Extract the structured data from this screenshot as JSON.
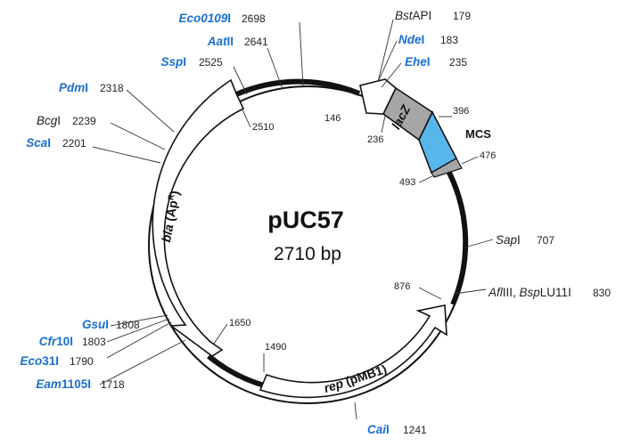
{
  "plasmid": {
    "name": "pUC57",
    "size": "2710 bp"
  },
  "features": {
    "bla": {
      "name": "bla",
      "suffix": " (Ap",
      "sup": "R",
      "close": ")"
    },
    "rep": {
      "name": "rep",
      "suffix": " (pMB1)"
    },
    "lacZ": {
      "name": "lacZ"
    },
    "mcs": {
      "name": "MCS"
    }
  },
  "positions": {
    "p146": "146",
    "p236": "236",
    "p396": "396",
    "p476": "476",
    "p493": "493",
    "p876": "876",
    "p1490": "1490",
    "p1650": "1650",
    "p2510": "2510"
  },
  "enzymes": {
    "eco0109i": {
      "name": "Eco0109",
      "suffix": "I",
      "pos": "2698"
    },
    "aatii": {
      "name": "Aat",
      "suffix": "II",
      "pos": "2641"
    },
    "sspi": {
      "name": "Ssp",
      "suffix": "I",
      "pos": "2525"
    },
    "pdmi": {
      "name": "Pdm",
      "suffix": "I",
      "pos": "2318"
    },
    "bcgi": {
      "name": "Bcg",
      "suffix": "I",
      "pos": "2239"
    },
    "scai": {
      "name": "Sca",
      "suffix": "I",
      "pos": "2201"
    },
    "bstapi": {
      "name": "Bst",
      "suffix": "API",
      "pos": "179"
    },
    "ndei": {
      "name": "Nde",
      "suffix": "I",
      "pos": "183"
    },
    "ehei": {
      "name": "Ehe",
      "suffix": "I",
      "pos": "235"
    },
    "sapi": {
      "name": "Sap",
      "suffix": "I",
      "pos": "707"
    },
    "afliii": {
      "name": "Afl",
      "suffix": "III, ",
      "name2": "Bsp",
      "suffix2": "LU11I",
      "pos": "830"
    },
    "gsui": {
      "name": "Gsu",
      "suffix": "I",
      "pos": "1808"
    },
    "cfr10i": {
      "name": "Cfr",
      "suffix": "10I",
      "pos": "1803"
    },
    "eco31i": {
      "name": "Eco",
      "suffix": "31I",
      "pos": "1790"
    },
    "eam1105i": {
      "name": "Eam",
      "suffix": "1105I",
      "pos": "1718"
    },
    "cail": {
      "name": "Cai",
      "suffix": "I",
      "pos": "1241"
    }
  },
  "colors": {
    "enzyme_blue": "#1a6fd1",
    "mcs_blue": "#58b7ea",
    "lacz_gray": "#a6a6a6",
    "backbone": "#111111"
  }
}
